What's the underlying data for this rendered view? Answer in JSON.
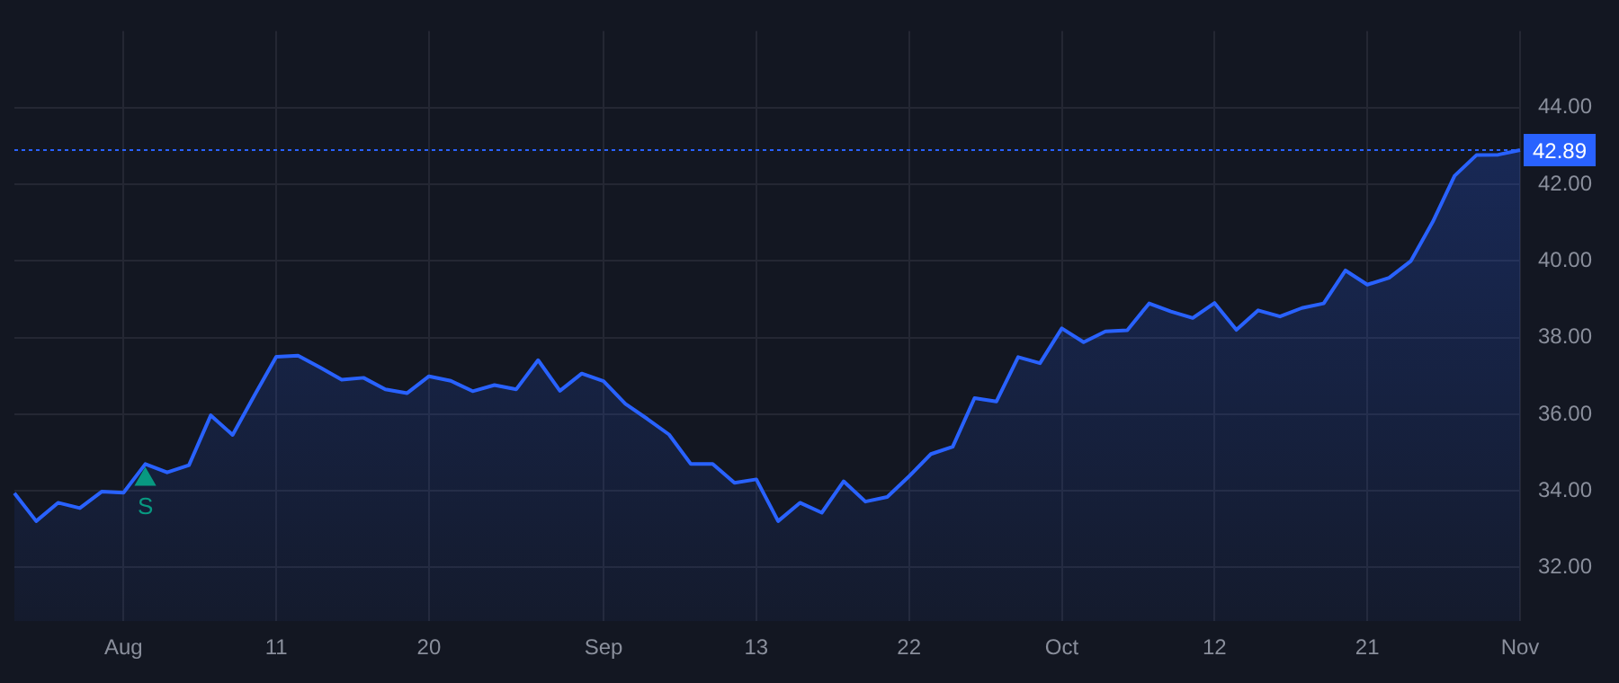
{
  "chart_data": {
    "type": "area",
    "categories": [
      null,
      null,
      null,
      null,
      null,
      "Aug",
      null,
      null,
      null,
      null,
      null,
      null,
      "11",
      null,
      null,
      null,
      null,
      null,
      null,
      "20",
      null,
      null,
      null,
      null,
      null,
      null,
      null,
      "Sep",
      null,
      null,
      null,
      null,
      null,
      null,
      "13",
      null,
      null,
      null,
      null,
      null,
      null,
      "22",
      null,
      null,
      null,
      null,
      null,
      null,
      "Oct",
      null,
      null,
      null,
      null,
      null,
      null,
      "12",
      null,
      null,
      null,
      null,
      null,
      null,
      "21",
      null,
      null,
      null,
      null,
      null,
      null,
      "Nov"
    ],
    "series": [
      {
        "color": "#2962ff",
        "values": [
          33.94,
          33.21,
          33.69,
          33.55,
          33.98,
          33.95,
          34.7,
          34.48,
          34.67,
          35.97,
          35.46,
          36.49,
          37.5,
          37.53,
          37.22,
          36.9,
          36.95,
          36.65,
          36.55,
          36.99,
          36.87,
          36.6,
          36.76,
          36.65,
          37.41,
          36.61,
          37.06,
          36.86,
          36.27,
          35.88,
          35.47,
          34.7,
          34.7,
          34.21,
          34.3,
          33.21,
          33.69,
          33.43,
          34.25,
          33.72,
          33.84,
          34.38,
          34.96,
          35.15,
          36.42,
          36.33,
          37.49,
          37.33,
          38.24,
          37.88,
          38.16,
          38.19,
          38.89,
          38.68,
          38.51,
          38.9,
          38.2,
          38.71,
          38.55,
          38.77,
          38.89,
          39.75,
          39.38,
          39.56,
          40.0,
          41.02,
          42.22,
          42.76,
          42.77,
          42.89
        ]
      },
      {
        "type": "scatter",
        "name": "S",
        "color": "#089981",
        "marker": "triangle",
        "values": [
          null,
          null,
          null,
          null,
          null,
          null,
          34.3,
          null,
          null,
          null,
          null,
          null,
          null,
          null,
          null,
          null,
          null,
          null,
          null,
          null,
          null,
          null,
          null,
          null,
          null,
          null,
          null,
          null,
          null,
          null,
          null,
          null,
          null,
          null,
          null,
          null,
          null,
          null,
          null,
          null,
          null,
          null,
          null,
          null,
          null,
          null,
          null,
          null,
          null,
          null,
          null,
          null,
          null,
          null,
          null,
          null,
          null,
          null,
          null,
          null,
          null,
          null,
          null,
          null,
          null,
          null,
          null,
          null,
          null,
          null
        ]
      }
    ],
    "ylim": [
      30.6,
      46
    ],
    "yticks": [
      {
        "value": 32,
        "label": "32.00"
      },
      {
        "value": 34,
        "label": "34.00"
      },
      {
        "value": 36,
        "label": "36.00"
      },
      {
        "value": 38,
        "label": "38.00"
      },
      {
        "value": 40,
        "label": "40.00"
      },
      {
        "value": 42,
        "label": "42.00"
      },
      {
        "value": 44,
        "label": "44.00"
      }
    ],
    "ref_lines": [
      {
        "axis": "y",
        "value": 42.89,
        "label": "42.89",
        "color": "#2962ff",
        "line_style": "dotted"
      }
    ],
    "grid": true,
    "legend": false
  }
}
